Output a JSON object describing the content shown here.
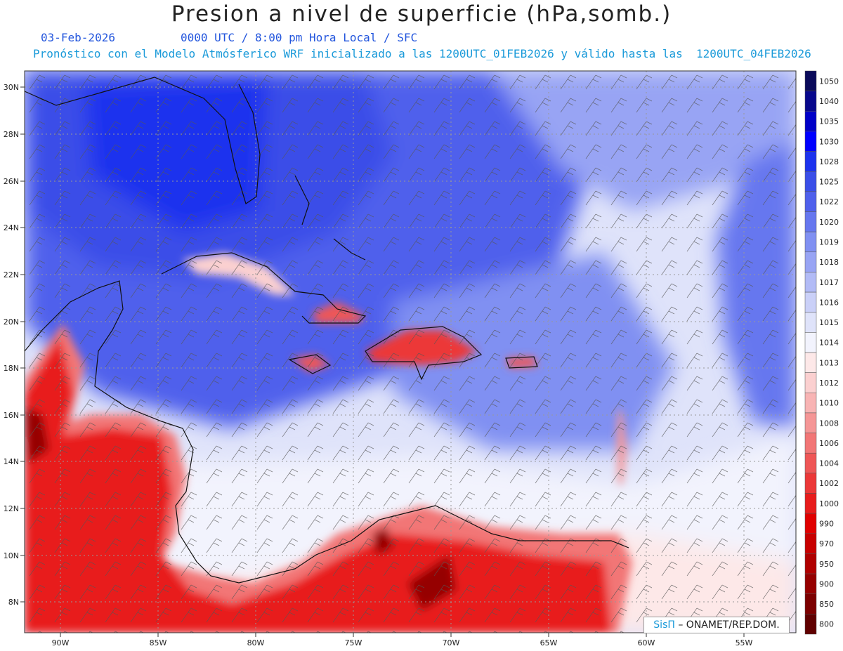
{
  "header": {
    "title": "Presion a nivel de superficie (hPa,somb.)",
    "date": "03-Feb-2026",
    "valid_time": "0000 UTC / 8:00 pm Hora Local / SFC",
    "model_line": "Pronóstico con el Modelo Atmósferico WRF inicializado a las 1200UTC_01FEB2026 y válido hasta las  1200UTC_04FEB2026"
  },
  "colors": {
    "date": "#2255dd",
    "model": "#1a9ad9"
  },
  "map": {
    "lat_labels": [
      "30N",
      "28N",
      "26N",
      "24N",
      "22N",
      "20N",
      "18N",
      "16N",
      "14N",
      "12N",
      "10N",
      "8N"
    ],
    "lon_labels": [
      "90W",
      "85W",
      "80W",
      "75W",
      "70W",
      "65W",
      "60W",
      "55W"
    ]
  },
  "colorbar": {
    "levels": [
      {
        "label": "1050",
        "color": "#0a0a5a"
      },
      {
        "label": "1040",
        "color": "#08088c"
      },
      {
        "label": "1035",
        "color": "#0000c8"
      },
      {
        "label": "1030",
        "color": "#0000ff"
      },
      {
        "label": "1028",
        "color": "#1c32ee"
      },
      {
        "label": "1025",
        "color": "#3a4ee8"
      },
      {
        "label": "1022",
        "color": "#4f60ec"
      },
      {
        "label": "1020",
        "color": "#6677ef"
      },
      {
        "label": "1019",
        "color": "#8090f2"
      },
      {
        "label": "1018",
        "color": "#98a4f4"
      },
      {
        "label": "1017",
        "color": "#b2bbf6"
      },
      {
        "label": "1016",
        "color": "#cad0f8"
      },
      {
        "label": "1015",
        "color": "#dfe3fa"
      },
      {
        "label": "1014",
        "color": "#f2f3fd"
      },
      {
        "label": "1013",
        "color": "#fde8e8"
      },
      {
        "label": "1012",
        "color": "#fbd0d0"
      },
      {
        "label": "1010",
        "color": "#f8b4b4"
      },
      {
        "label": "1008",
        "color": "#f59696"
      },
      {
        "label": "1006",
        "color": "#f27676"
      },
      {
        "label": "1004",
        "color": "#ef5656"
      },
      {
        "label": "1002",
        "color": "#ec3838"
      },
      {
        "label": "1000",
        "color": "#e81c1c"
      },
      {
        "label": "990",
        "color": "#e00000"
      },
      {
        "label": "970",
        "color": "#c80000"
      },
      {
        "label": "950",
        "color": "#b00000"
      },
      {
        "label": "900",
        "color": "#960000"
      },
      {
        "label": "850",
        "color": "#7c0000"
      },
      {
        "label": "800",
        "color": "#600000"
      }
    ]
  },
  "credit": {
    "logo": "SisΠ",
    "text": "– ONAMET/REP.DOM."
  }
}
